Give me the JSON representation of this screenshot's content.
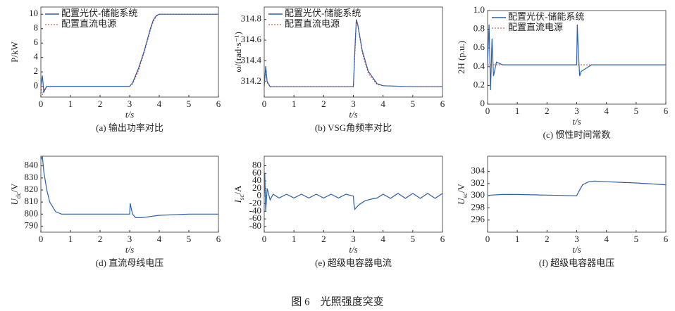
{
  "chart_data": [
    {
      "type": "line",
      "ylabel": "P/kW",
      "xlabel": "t/s",
      "caption": "(a) 输出功率对比",
      "xlim": [
        0,
        6
      ],
      "xticks": [
        0,
        1,
        2,
        3,
        4,
        5,
        6
      ],
      "ylim": [
        -1.5,
        11
      ],
      "yticks": [
        0,
        2,
        4,
        6,
        8,
        10
      ],
      "x": [
        0,
        0.05,
        0.1,
        0.2,
        0.5,
        1,
        2,
        3,
        3.1,
        3.3,
        3.5,
        3.7,
        3.8,
        3.9,
        4,
        4.5,
        5,
        6
      ],
      "series": [
        {
          "name": "配置直流电源",
          "color": "#d9302a",
          "dash": true,
          "values": [
            0,
            -1.2,
            -0.5,
            0,
            0,
            0,
            0,
            0,
            0.3,
            2.2,
            4.8,
            7.8,
            9.0,
            9.7,
            10,
            10,
            10,
            10
          ]
        },
        {
          "name": "配置光伏-储能系统",
          "color": "#2b5fad",
          "dash": false,
          "values": [
            0,
            1.5,
            -0.8,
            0,
            0,
            0,
            0,
            0,
            0.5,
            2.5,
            5,
            8,
            9.2,
            9.8,
            10,
            10,
            10,
            10
          ]
        }
      ],
      "legend_order": [
        1,
        0
      ]
    },
    {
      "type": "line",
      "ylabel": "ω/(rad·s⁻¹)",
      "xlabel": "t/s",
      "caption": "(b) VSG角频率对比",
      "xlim": [
        0,
        6
      ],
      "xticks": [
        0,
        1,
        2,
        3,
        4,
        5,
        6
      ],
      "ylim": [
        314.05,
        314.92
      ],
      "yticks": [
        314.2,
        314.4,
        314.6,
        314.8
      ],
      "x": [
        0,
        0.05,
        0.1,
        0.2,
        0.4,
        1,
        2,
        3,
        3.05,
        3.1,
        3.15,
        3.3,
        3.5,
        3.8,
        4,
        5,
        6
      ],
      "series": [
        {
          "name": "配置直流电源",
          "color": "#d9302a",
          "dash": true,
          "values": [
            314.15,
            314.32,
            314.19,
            314.15,
            314.15,
            314.15,
            314.15,
            314.15,
            314.45,
            314.78,
            314.74,
            314.48,
            314.28,
            314.17,
            314.16,
            314.15,
            314.15
          ]
        },
        {
          "name": "配置光伏-储能系统",
          "color": "#2b5fad",
          "dash": false,
          "values": [
            314.15,
            314.35,
            314.2,
            314.15,
            314.15,
            314.15,
            314.15,
            314.15,
            314.5,
            314.8,
            314.75,
            314.5,
            314.3,
            314.18,
            314.16,
            314.15,
            314.15
          ]
        }
      ],
      "legend_order": [
        1,
        0
      ]
    },
    {
      "type": "line",
      "ylabel": "2H (p.u.)",
      "xlabel": "t/s",
      "caption": "(c) 惯性时间常数",
      "xlim": [
        0,
        6
      ],
      "xticks": [
        0,
        1,
        2,
        3,
        4,
        5,
        6
      ],
      "ylim": [
        0,
        1
      ],
      "yticks": [
        0,
        0.2,
        0.4,
        0.6,
        0.8,
        {
          "value": 1,
          "label": "1.0"
        }
      ],
      "x": [
        0,
        0.05,
        0.1,
        0.15,
        0.2,
        0.3,
        0.5,
        1,
        2,
        3,
        3.02,
        3.05,
        3.1,
        3.15,
        3.3,
        3.5,
        4,
        5,
        6
      ],
      "series": [
        {
          "name": "配置直流电源",
          "color": "#d9302a",
          "dash": true,
          "values": [
            0.42,
            0.42,
            0.42,
            0.42,
            0.42,
            0.42,
            0.42,
            0.42,
            0.42,
            0.42,
            0.42,
            0.42,
            0.42,
            0.42,
            0.42,
            0.42,
            0.42,
            0.42,
            0.42
          ]
        },
        {
          "name": "配置光伏-储能系统",
          "color": "#2b5fad",
          "dash": false,
          "values": [
            0.42,
            0.85,
            0.15,
            0.7,
            0.3,
            0.45,
            0.42,
            0.42,
            0.42,
            0.42,
            0.85,
            0.6,
            0.3,
            0.35,
            0.38,
            0.42,
            0.42,
            0.42,
            0.42
          ]
        }
      ],
      "legend_order": [
        1,
        0
      ]
    },
    {
      "type": "line",
      "ylabel": [
        "U",
        "dc",
        "/V"
      ],
      "xlabel": "t/s",
      "caption": "(d) 直流母线电压",
      "xlim": [
        0,
        6
      ],
      "xticks": [
        0,
        1,
        2,
        3,
        4,
        5,
        6
      ],
      "ylim": [
        785,
        848
      ],
      "yticks": [
        790,
        800,
        810,
        820,
        830,
        840
      ],
      "x": [
        0,
        0.05,
        0.1,
        0.2,
        0.3,
        0.5,
        0.7,
        1,
        2,
        3,
        3.02,
        3.05,
        3.1,
        3.2,
        3.4,
        3.7,
        4,
        5,
        6
      ],
      "series": [
        {
          "color": "#2b5fad",
          "dash": false,
          "values": [
            845,
            848,
            835,
            820,
            810,
            802,
            800,
            800,
            800,
            800,
            809,
            805,
            800,
            797,
            797,
            798,
            799,
            800,
            800
          ]
        }
      ]
    },
    {
      "type": "line",
      "ylabel": [
        "I",
        "sc",
        "/A"
      ],
      "xlabel": "t/s",
      "caption": "(e) 超级电容器电流",
      "xlim": [
        0,
        6
      ],
      "xticks": [
        0,
        1,
        2,
        3,
        4,
        5,
        6
      ],
      "ylim": [
        -95,
        105
      ],
      "yticks": [
        -80,
        -60,
        -40,
        -20,
        0,
        20,
        40,
        60,
        80
      ],
      "x": [
        0,
        0.02,
        0.05,
        0.1,
        0.2,
        0.3,
        0.5,
        0.75,
        1,
        1.25,
        1.5,
        1.75,
        2,
        2.25,
        2.5,
        2.75,
        3,
        3.02,
        3.05,
        3.1,
        3.2,
        3.4,
        3.6,
        3.8,
        4,
        4.25,
        4.5,
        4.75,
        5,
        5.25,
        5.5,
        5.75,
        6
      ],
      "series": [
        {
          "color": "#2b5fad",
          "dash": false,
          "values": [
            0,
            60,
            -40,
            20,
            -10,
            5,
            -5,
            5,
            -5,
            5,
            -5,
            5,
            -5,
            5,
            -5,
            5,
            0,
            -20,
            -35,
            -30,
            -22,
            -12,
            -8,
            -5,
            5,
            -6,
            7,
            -6,
            7,
            -6,
            7,
            -6,
            7
          ]
        }
      ]
    },
    {
      "type": "line",
      "ylabel": [
        "U",
        "sc",
        "/V"
      ],
      "xlabel": "t/s",
      "caption": "(f) 超级电容器电压",
      "xlim": [
        0,
        6
      ],
      "xticks": [
        0,
        1,
        2,
        3,
        4,
        5,
        6
      ],
      "ylim": [
        294,
        306.5
      ],
      "yticks": [
        296,
        298,
        300,
        302,
        304
      ],
      "x": [
        0,
        0.1,
        0.5,
        1,
        2,
        3,
        3.05,
        3.2,
        3.4,
        3.6,
        4,
        5,
        6
      ],
      "series": [
        {
          "color": "#2b5fad",
          "dash": false,
          "values": [
            300,
            300.1,
            300.2,
            300.2,
            300.1,
            300,
            300.5,
            301.8,
            302.3,
            302.4,
            302.3,
            302.1,
            301.8
          ]
        }
      ]
    }
  ],
  "caption": "图 6　光照强度突变"
}
